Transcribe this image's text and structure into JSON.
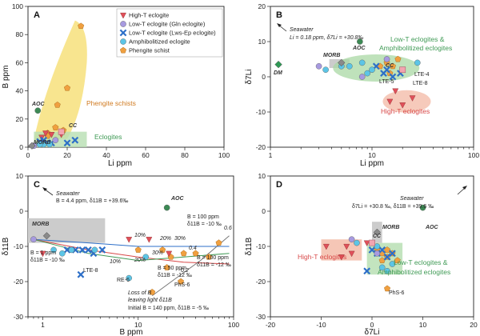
{
  "legend": [
    {
      "label": "High-T eclogite",
      "marker": "tri-down",
      "color": "#e0505a"
    },
    {
      "label": "Low-T eclogite (Gln eclogite)",
      "marker": "circle",
      "color": "#a79ae0"
    },
    {
      "label": "Low-T eclogite (Lws-Ep eclogite)",
      "marker": "cross",
      "color": "#2d6fc8"
    },
    {
      "label": "Amphibolitized eclogite",
      "marker": "circle",
      "color": "#5cc5e6"
    },
    {
      "label": "Phengite schist",
      "marker": "pentagon",
      "color": "#f0a040"
    }
  ],
  "chart_data": [
    {
      "panel": "A",
      "type": "scatter",
      "xlabel": "Li ppm",
      "ylabel": "B ppm",
      "xlim": [
        0,
        100
      ],
      "ylim": [
        0,
        100
      ],
      "xticks": [
        "0",
        "20",
        "40",
        "60",
        "80",
        "100"
      ],
      "yticks": [
        "0",
        "20",
        "40",
        "60",
        "80",
        "100"
      ],
      "labels": {
        "aoc": "AOC",
        "cc": "CC",
        "morb": "MORB",
        "phengite": "Phengite schists",
        "eclogites": "Eclogites"
      },
      "fields": [
        {
          "name": "Phengite schists",
          "color": "#f5d860"
        },
        {
          "name": "Eclogites",
          "color": "#a9d8a4"
        }
      ],
      "series": [
        {
          "name": "Phengite schist",
          "points": [
            [
              27,
              86
            ],
            [
              20,
              42
            ],
            [
              15,
              30
            ],
            [
              10,
              10
            ],
            [
              18,
              12
            ],
            [
              14,
              14
            ],
            [
              10,
              8
            ]
          ]
        },
        {
          "name": "High-T eclogite",
          "points": [
            [
              7,
              7
            ],
            [
              9,
              10
            ],
            [
              12,
              9
            ],
            [
              17,
              9
            ]
          ]
        },
        {
          "name": "Low-T eclogite (Lws-Ep eclogite)",
          "points": [
            [
              6,
              4
            ],
            [
              8,
              5
            ],
            [
              12,
              3
            ],
            [
              20,
              3
            ],
            [
              24,
              5
            ],
            [
              10,
              3
            ]
          ]
        },
        {
          "name": "Amphibolitized eclogite",
          "points": [
            [
              8,
              2
            ],
            [
              6,
              2
            ],
            [
              11,
              2
            ]
          ]
        },
        {
          "name": "Low-T eclogite (Gln eclogite)",
          "points": [
            [
              3,
              1
            ],
            [
              14,
              5
            ]
          ]
        },
        {
          "name": "AOC",
          "points": [
            [
              5,
              26
            ]
          ]
        },
        {
          "name": "CC",
          "points": [
            [
              17,
              11
            ]
          ]
        },
        {
          "name": "MORB",
          "points": [
            [
              2,
              1
            ]
          ]
        }
      ]
    },
    {
      "panel": "B",
      "type": "scatter",
      "xlabel": "Li ppm",
      "ylabel": "δ7Li",
      "xscale": "log",
      "xlim": [
        1,
        100
      ],
      "ylim": [
        -20,
        20
      ],
      "xticks": [
        "1",
        "10",
        "100"
      ],
      "yticks": [
        "-20",
        "-10",
        "0",
        "10",
        "20"
      ],
      "labels": {
        "seawater": "Seawater",
        "seawater_vals": "Li = 0.18 ppm, δ7Li = +30.8‰",
        "aoc": "AOC",
        "cc": "CC",
        "morb": "MORB",
        "dm": "DM",
        "lte4": "LTE-4",
        "lte5": "LTE-5",
        "lte8": "LTE-8",
        "lowT": "Low-T eclogites &",
        "lowT2": "Amphibolitized eclogites",
        "highT": "High-T eclogites"
      },
      "series": [
        {
          "name": "Phengite schist",
          "points": [
            [
              12,
              3
            ],
            [
              14,
              4
            ],
            [
              16,
              3
            ],
            [
              18,
              5
            ],
            [
              15,
              1
            ]
          ]
        },
        {
          "name": "Low-T eclogite (Lws-Ep eclogite)",
          "points": [
            [
              11,
              3
            ],
            [
              13,
              1
            ],
            [
              14,
              2
            ],
            [
              16,
              0
            ],
            [
              19,
              1
            ]
          ]
        },
        {
          "name": "High-T eclogite",
          "points": [
            [
              15,
              -7
            ],
            [
              20,
              -8
            ],
            [
              25,
              -6
            ],
            [
              17,
              -4
            ]
          ]
        },
        {
          "name": "Amphibolitized eclogite",
          "points": [
            [
              3.5,
              2
            ],
            [
              5,
              3
            ],
            [
              6,
              3
            ],
            [
              8,
              4
            ],
            [
              9,
              1
            ],
            [
              10,
              2
            ],
            [
              28,
              4
            ]
          ]
        },
        {
          "name": "Low-T eclogite (Gln eclogite)",
          "points": [
            [
              3,
              3
            ],
            [
              8,
              0
            ],
            [
              14,
              5
            ]
          ]
        },
        {
          "name": "AOC",
          "points": [
            [
              7.6,
              10
            ]
          ]
        },
        {
          "name": "CC",
          "points": [
            [
              20,
              2
            ]
          ]
        },
        {
          "name": "MORB",
          "points": [
            [
              5,
              4
            ]
          ]
        },
        {
          "name": "DM",
          "points": [
            [
              1.2,
              3.5
            ]
          ]
        }
      ]
    },
    {
      "panel": "C",
      "type": "scatter",
      "xlabel": "B ppm",
      "ylabel": "δ11B",
      "xscale": "log",
      "xlim": [
        0.7,
        100
      ],
      "ylim": [
        -30,
        10
      ],
      "xticks": [
        "1",
        "10",
        "100"
      ],
      "yticks": [
        "-30",
        "-20",
        "-10",
        "0",
        "10"
      ],
      "labels": {
        "seawater": "Seawater",
        "seawater_vals": "B = 4.4 ppm, δ11B = +39.6‰",
        "aoc": "AOC",
        "morb": "MORB",
        "b1": "B = 1 ppm",
        "b1d": "δ11B = -10 ‰",
        "b100a": "B = 100 ppm",
        "b100ad": "δ11B = -10 ‰",
        "b100b": "B = 100 ppm",
        "b100bd": "δ11B = -12 ‰",
        "b50": "B = 50 ppm",
        "b50d": "δ11B = -12 ‰",
        "loss1": "Loss of B",
        "loss2": "leaving light δ11B",
        "loss3": "Initial B = 140 ppm, δ11B = -5 ‰",
        "lte8": "LTE-8",
        "re6": "RE-6",
        "phs6": "PhS-6",
        "p10a": "10%",
        "p20a": "20%",
        "p30a": "30%",
        "p10b": "10%",
        "p20b": "20%",
        "p30b": "30%",
        "f04": "0.4",
        "f02": "0.2",
        "f06": "0.6"
      },
      "series": [
        {
          "name": "Phengite schist",
          "points": [
            [
              10,
              -11
            ],
            [
              18,
              -11
            ],
            [
              22,
              -13
            ],
            [
              30,
              -12
            ],
            [
              40,
              -12
            ],
            [
              55,
              -13
            ],
            [
              70,
              -9
            ],
            [
              28,
              -20
            ],
            [
              20,
              -16
            ],
            [
              14,
              -23
            ]
          ]
        },
        {
          "name": "High-T eclogite",
          "points": [
            [
              1,
              -12
            ],
            [
              8,
              -8
            ],
            [
              13,
              -8
            ],
            [
              21,
              -12
            ]
          ]
        },
        {
          "name": "Low-T eclogite (Lws-Ep eclogite)",
          "points": [
            [
              1.8,
              -11
            ],
            [
              2.2,
              -11
            ],
            [
              2.6,
              -11
            ],
            [
              3,
              -11
            ],
            [
              3.4,
              -12
            ],
            [
              4.2,
              -11
            ],
            [
              2.5,
              -18
            ]
          ]
        },
        {
          "name": "Amphibolitized eclogite",
          "points": [
            [
              1.3,
              -11
            ],
            [
              1.6,
              -12
            ],
            [
              2,
              -11
            ],
            [
              3.5,
              -11
            ],
            [
              8,
              -19
            ],
            [
              12,
              -13
            ]
          ]
        },
        {
          "name": "Low-T eclogite (Gln eclogite)",
          "points": [
            [
              0.8,
              -8
            ]
          ]
        },
        {
          "name": "AOC",
          "points": [
            [
              20,
              1
            ]
          ]
        },
        {
          "name": "MORB",
          "points": [
            [
              1.1,
              -7
            ]
          ]
        }
      ]
    },
    {
      "panel": "D",
      "type": "scatter",
      "xlabel": "δ7Li",
      "ylabel": "δ11B",
      "xlim": [
        -20,
        20
      ],
      "ylim": [
        -30,
        10
      ],
      "xticks": [
        "-20",
        "-10",
        "0",
        "10",
        "20"
      ],
      "yticks": [
        "-30",
        "-20",
        "-10",
        "0",
        "10"
      ],
      "labels": {
        "seawater": "Seawater",
        "seawater_vals": "δ7Li = +30.8 ‰, δ11B = +39.6 ‰",
        "aoc": "AOC",
        "cc": "CC",
        "morb": "MORB",
        "phs6": "PhS-6",
        "highT": "High-T eclogites",
        "lowT": "Low-T eclogites &",
        "lowT2": "Amphibolitized eclogites"
      },
      "series": [
        {
          "name": "High-T eclogite",
          "points": [
            [
              -9,
              -10
            ],
            [
              -5,
              -10
            ],
            [
              -4,
              -12
            ],
            [
              -6,
              -13
            ],
            [
              -1,
              -9
            ]
          ]
        },
        {
          "name": "Phengite schist",
          "points": [
            [
              1,
              -11
            ],
            [
              2,
              -12
            ],
            [
              3,
              -13
            ],
            [
              4,
              -12
            ],
            [
              3,
              -11
            ],
            [
              5,
              -14
            ],
            [
              2,
              -14
            ],
            [
              3,
              -22
            ]
          ]
        },
        {
          "name": "Low-T eclogite (Lws-Ep eclogite)",
          "points": [
            [
              0,
              -11
            ],
            [
              1,
              -12
            ],
            [
              2,
              -11
            ],
            [
              3,
              -13
            ],
            [
              -1,
              -17
            ],
            [
              4,
              -12
            ]
          ]
        },
        {
          "name": "Amphibolitized eclogite",
          "points": [
            [
              -3,
              -9
            ],
            [
              1,
              -10
            ],
            [
              2,
              -16
            ],
            [
              3,
              -17
            ],
            [
              4,
              -15
            ]
          ]
        },
        {
          "name": "Low-T eclogite (Gln eclogite)",
          "points": [
            [
              -4,
              -8
            ],
            [
              1,
              -12
            ]
          ]
        },
        {
          "name": "AOC",
          "points": [
            [
              10,
              1
            ]
          ]
        },
        {
          "name": "CC",
          "points": [
            [
              0,
              -9
            ]
          ]
        },
        {
          "name": "MORB",
          "points": [
            [
              1,
              -6
            ]
          ]
        }
      ]
    }
  ]
}
